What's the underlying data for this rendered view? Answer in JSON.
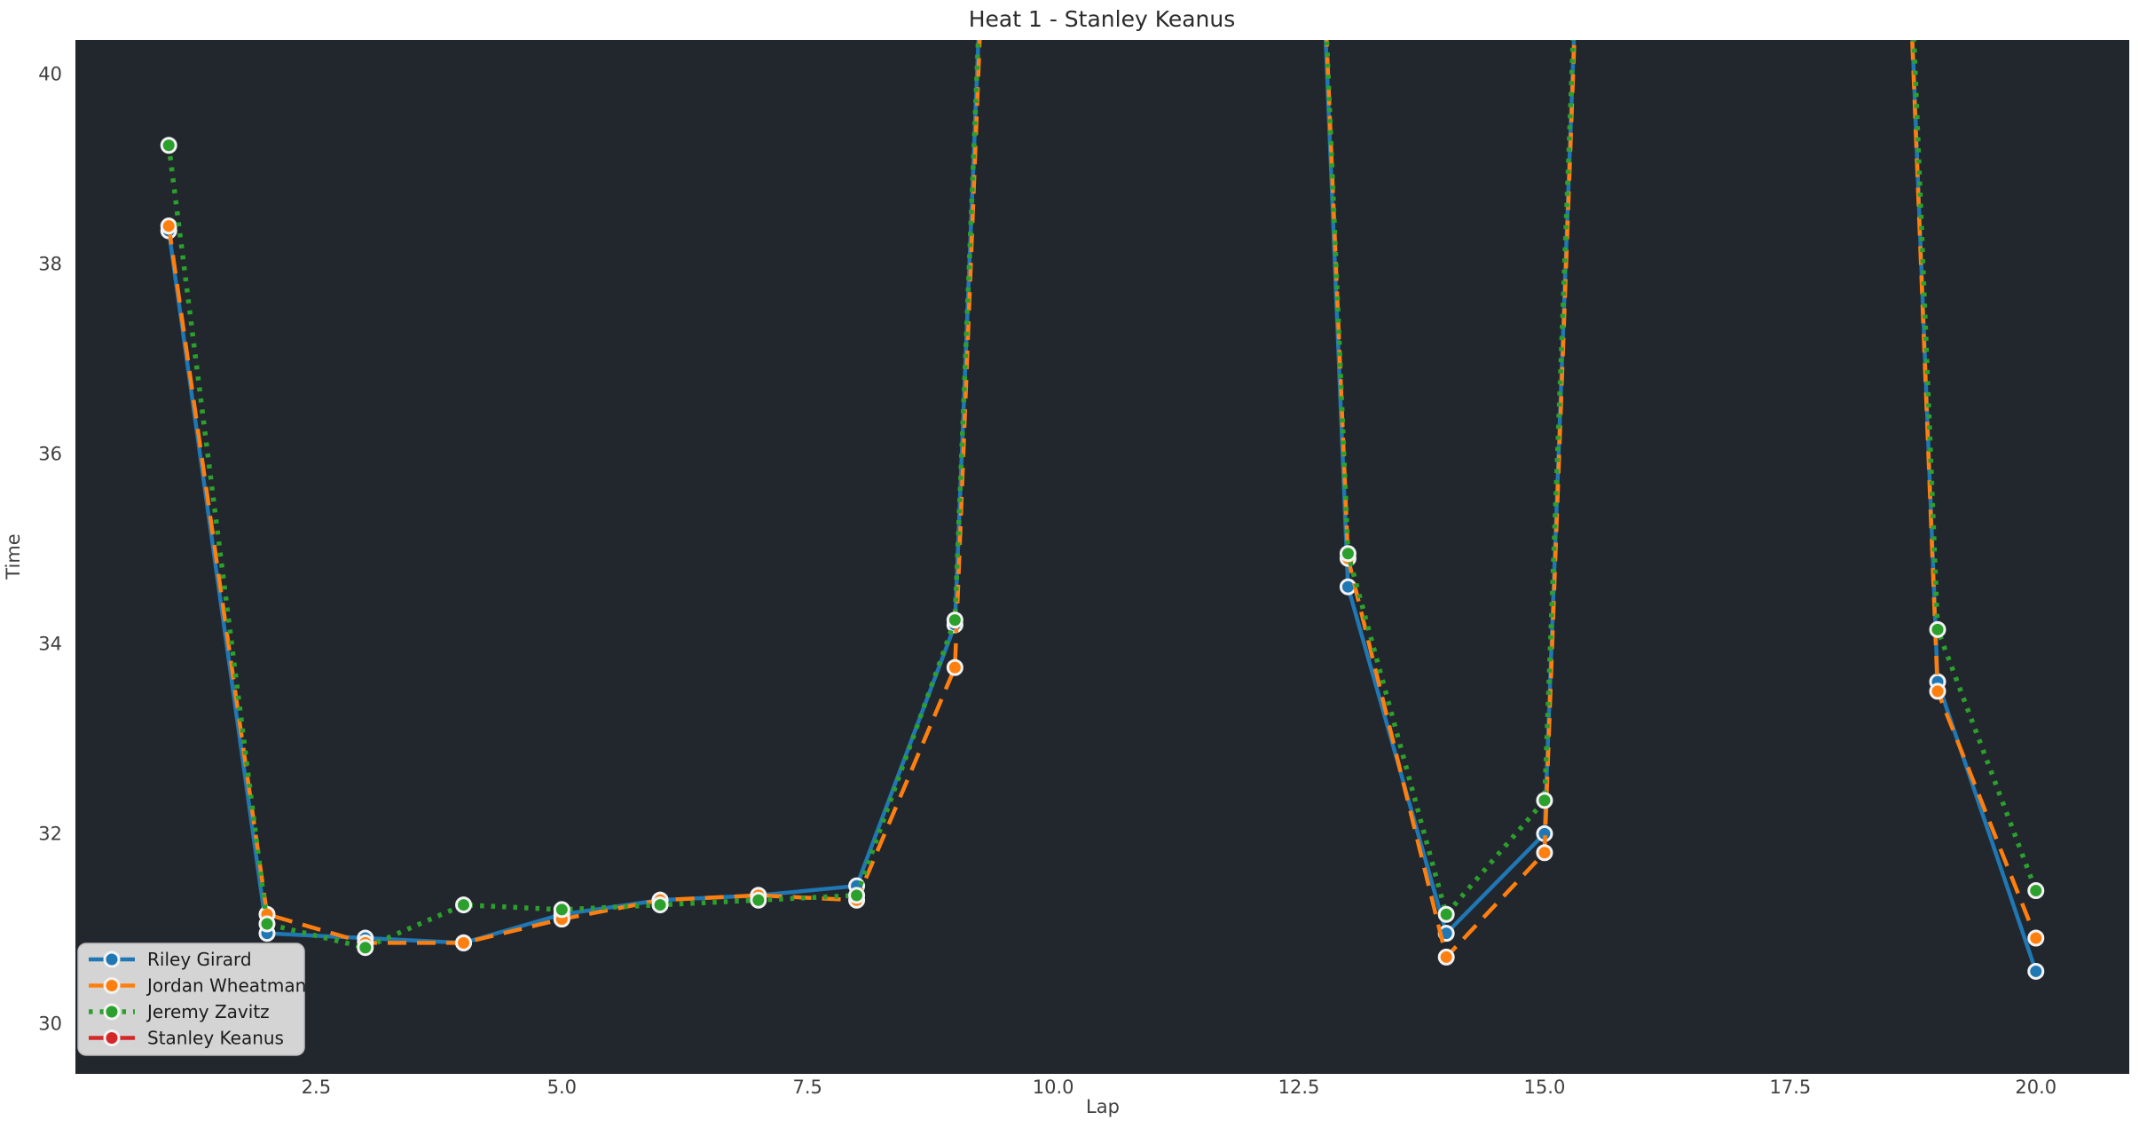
{
  "chart_data": {
    "type": "line",
    "title": "Heat 1 - Stanley Keanus",
    "xlabel": "Lap",
    "ylabel": "Time",
    "x": [
      1,
      2,
      3,
      4,
      5,
      6,
      7,
      8,
      9,
      10,
      11,
      12,
      13,
      14,
      15,
      16,
      17,
      18,
      19,
      20
    ],
    "xlim": [
      0.05,
      20.95
    ],
    "ylim": [
      29.47,
      40.36
    ],
    "xticks": [
      2.5,
      5.0,
      7.5,
      10.0,
      12.5,
      15.0,
      17.5,
      20.0
    ],
    "xtick_labels": [
      "2.5",
      "5.0",
      "7.5",
      "10.0",
      "12.5",
      "15.0",
      "17.5",
      "20.0"
    ],
    "yticks": [
      30,
      32,
      34,
      36,
      38,
      40
    ],
    "ytick_labels": [
      "30",
      "32",
      "34",
      "36",
      "38",
      "40"
    ],
    "grid": false,
    "legend_position": "lower-left",
    "offscale_note": "null = lap time above the visible y-range; the connecting line exits the top of the plot (rendered with offscale_render_value). Stanley Keanus has no points inside the visible range.",
    "offscale_render_value": 60,
    "series": [
      {
        "name": "Riley Girard",
        "color": "#1f77b4",
        "line_style": "solid",
        "marker": "circle",
        "values": [
          38.35,
          30.95,
          30.9,
          30.85,
          31.15,
          31.3,
          31.35,
          31.45,
          34.2,
          null,
          null,
          null,
          34.6,
          30.95,
          32.0,
          null,
          null,
          null,
          33.6,
          30.55
        ]
      },
      {
        "name": "Jordan Wheatman",
        "color": "#ff7f0e",
        "line_style": "dashed",
        "marker": "circle",
        "values": [
          38.4,
          31.15,
          30.85,
          30.85,
          31.1,
          31.3,
          31.35,
          31.3,
          33.75,
          null,
          null,
          null,
          34.9,
          30.7,
          31.8,
          null,
          null,
          null,
          33.5,
          30.9
        ]
      },
      {
        "name": "Jeremy Zavitz",
        "color": "#2ca02c",
        "line_style": "dotted",
        "marker": "circle",
        "values": [
          39.25,
          31.05,
          30.8,
          31.25,
          31.2,
          31.25,
          31.3,
          31.35,
          34.25,
          null,
          null,
          null,
          34.95,
          31.15,
          32.35,
          null,
          null,
          null,
          34.15,
          31.4
        ]
      },
      {
        "name": "Stanley Keanus",
        "color": "#d62728",
        "line_style": "dashed",
        "marker": "circle",
        "values": [
          null,
          null,
          null,
          null,
          null,
          null,
          null,
          null,
          null,
          null,
          null,
          null,
          null,
          null,
          null,
          null,
          null,
          null,
          null,
          null
        ]
      }
    ]
  },
  "colors": {
    "figure_background": "#ffffff",
    "axes_background": "#22272e",
    "title_text": "#2b2b2b",
    "tick_text": "#404040",
    "axis_label_text": "#404040",
    "legend_background": "#d4d4d4",
    "legend_border": "#bcbcbc",
    "legend_text": "#1c1c1c",
    "marker_edge": "#f2f2f2"
  }
}
